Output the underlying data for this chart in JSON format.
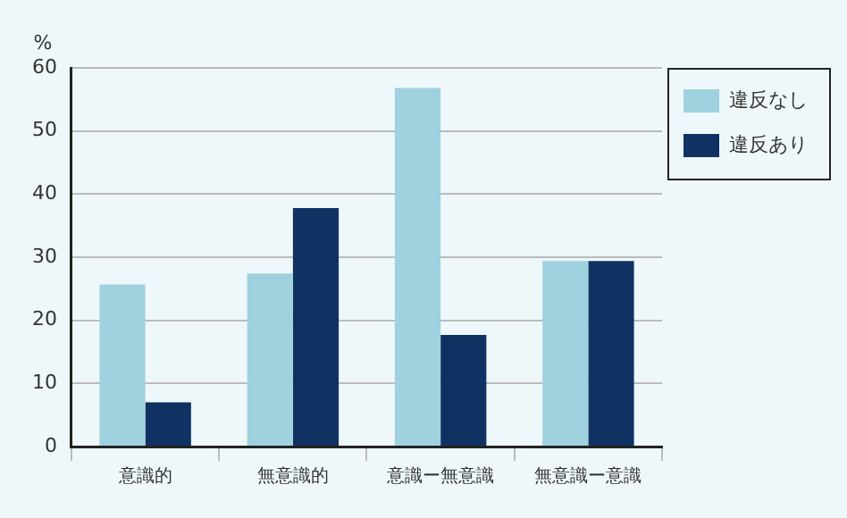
{
  "chart_data": {
    "type": "bar",
    "ylabel": "%",
    "categories": [
      "意識的",
      "無意識的",
      "意識ー無意識",
      "無意識ー意識"
    ],
    "series": [
      {
        "name": "違反なし",
        "color": "#9fd1df",
        "values": [
          25.7,
          27.4,
          56.8,
          29.4
        ]
      },
      {
        "name": "違反あり",
        "color": "#0f3263",
        "values": [
          7.0,
          37.8,
          17.7,
          29.4
        ]
      }
    ],
    "ylim": [
      0,
      60
    ],
    "yticks": [
      0,
      10,
      20,
      30,
      40,
      50,
      60
    ],
    "grid": "y",
    "legend": "right"
  }
}
